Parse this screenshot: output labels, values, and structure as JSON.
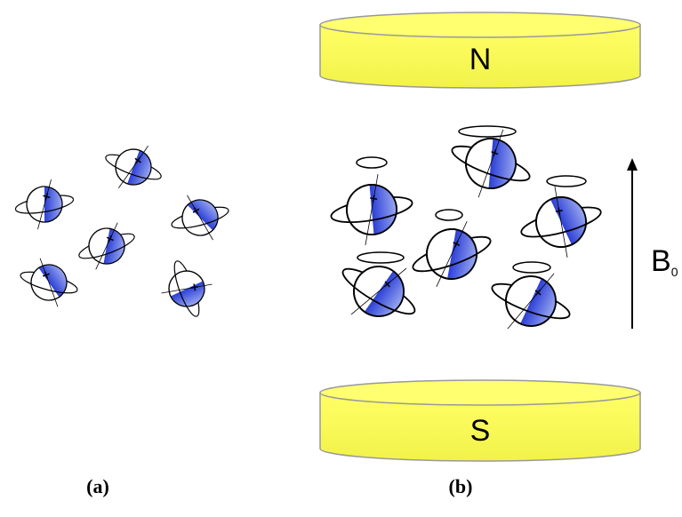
{
  "magnets": {
    "north": "N",
    "south": "S"
  },
  "field_label": {
    "symbol": "B",
    "subscript": "0"
  },
  "captions": {
    "a": "(a)",
    "b": "(b)"
  }
}
